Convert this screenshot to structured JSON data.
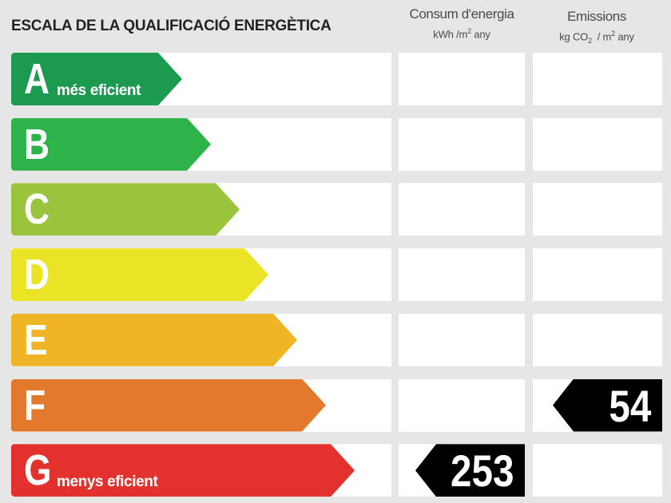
{
  "header": {
    "title": "ESCALA DE LA QUALIFICACIÓ ENERGÈTICA",
    "consumption": {
      "label": "Consum d'energia",
      "unit_pre": "kWh /m",
      "unit_sup": "2",
      "unit_post": " any"
    },
    "emissions": {
      "label": "Emissions",
      "unit_pre": "kg CO",
      "unit_sub": "2",
      "unit_mid": "  / m",
      "unit_sup": "2",
      "unit_post": " any"
    }
  },
  "rows": [
    {
      "letter": "A",
      "desc": "més eficient",
      "color": "#1c9a4f"
    },
    {
      "letter": "B",
      "desc": "",
      "color": "#2db34a"
    },
    {
      "letter": "C",
      "desc": "",
      "color": "#9ac43c"
    },
    {
      "letter": "D",
      "desc": "",
      "color": "#ebe426"
    },
    {
      "letter": "E",
      "desc": "",
      "color": "#f0b526"
    },
    {
      "letter": "F",
      "desc": "",
      "color": "#e3792c"
    },
    {
      "letter": "G",
      "desc": "menys eficient",
      "color": "#e3322d"
    }
  ],
  "ratings": {
    "consumption": {
      "value": "253",
      "class": "G"
    },
    "emissions": {
      "value": "54",
      "class": "F"
    }
  }
}
